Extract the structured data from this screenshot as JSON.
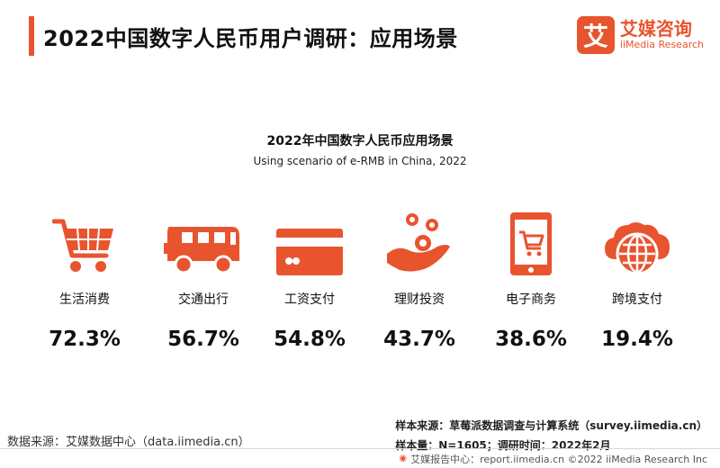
{
  "header": {
    "title": "2022中国数字人民币用户调研：应用场景",
    "logo_mark": "艾",
    "logo_cn": "艾媒咨询",
    "logo_en": "iiMedia Research"
  },
  "chart_data": {
    "type": "table",
    "title": "2022年中国数字人民币应用场景",
    "subtitle": "Using scenario of e-RMB in China, 2022",
    "categories": [
      "生活消费",
      "交通出行",
      "工资支付",
      "理财投资",
      "电子商务",
      "跨境支付"
    ],
    "values": [
      72.3,
      56.7,
      54.8,
      43.7,
      38.6,
      19.4
    ],
    "value_labels": [
      "72.3%",
      "56.7%",
      "54.8%",
      "43.7%",
      "38.6%",
      "19.4%"
    ],
    "icons": [
      "shopping-cart-icon",
      "bus-icon",
      "credit-card-icon",
      "coins-hand-icon",
      "mobile-shop-icon",
      "globe-cloud-icon"
    ],
    "accent_color": "#e8542e"
  },
  "source": {
    "left": "数据来源：艾媒数据中心（data.iimedia.cn）",
    "sample_source": "样本来源：草莓派数据调查与计算系统（survey.iimedia.cn）",
    "sample_size": "样本量：N=1605；调研时间：2022年2月"
  },
  "footer": {
    "text": "艾媒报告中心：report.iimedia.cn  ©2022 iiMedia Research Inc"
  }
}
